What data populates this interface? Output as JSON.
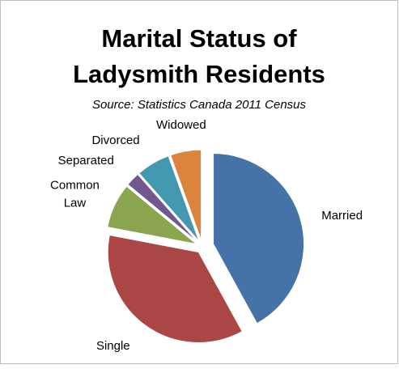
{
  "chart_data": {
    "type": "pie",
    "title": [
      "Marital Status of",
      "Ladysmith Residents"
    ],
    "subtitle": "Source: Statistics Canada 2011 Census",
    "categories": [
      "Married",
      "Single",
      "Common Law",
      "Separated",
      "Divorced",
      "Widowed"
    ],
    "values": [
      42,
      36,
      8,
      2.5,
      6,
      5.5
    ],
    "colors": [
      "#4572a7",
      "#aa4643",
      "#89a54e",
      "#71588f",
      "#4198af",
      "#db843d"
    ]
  }
}
